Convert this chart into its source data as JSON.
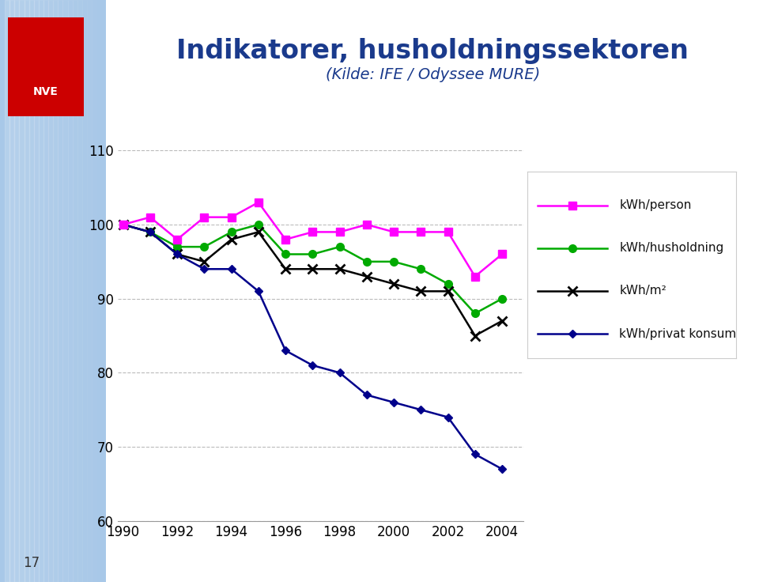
{
  "title": "Indikatorer, husholdningssektoren",
  "subtitle": "(Kilde: IFE / Odyssee MURE)",
  "title_color": "#1a3a8c",
  "subtitle_color": "#1a3a8c",
  "years": [
    1990,
    1991,
    1992,
    1993,
    1994,
    1995,
    1996,
    1997,
    1998,
    1999,
    2000,
    2001,
    2002,
    2003,
    2004
  ],
  "kwh_person": [
    100,
    101,
    98,
    101,
    101,
    103,
    98,
    99,
    99,
    100,
    99,
    99,
    99,
    93,
    96
  ],
  "kwh_husholdning": [
    100,
    99,
    97,
    97,
    99,
    100,
    96,
    96,
    97,
    95,
    95,
    94,
    92,
    88,
    90
  ],
  "kwh_m2": [
    100,
    99,
    96,
    95,
    98,
    99,
    94,
    94,
    94,
    93,
    92,
    91,
    91,
    85,
    87
  ],
  "kwh_privat": [
    100,
    99,
    96,
    94,
    94,
    91,
    83,
    81,
    80,
    77,
    76,
    75,
    74,
    69,
    67
  ],
  "person_color": "#ff00ff",
  "husholdning_color": "#00aa00",
  "m2_color": "#000000",
  "privat_color": "#00008b",
  "ylim": [
    60,
    115
  ],
  "yticks": [
    60,
    70,
    80,
    90,
    100,
    110
  ],
  "xticks": [
    1990,
    1992,
    1994,
    1996,
    1998,
    2000,
    2002,
    2004
  ],
  "footer_text": "17",
  "background_color": "#ffffff",
  "legend_labels": [
    "kWh/person",
    "kWh/husholdning",
    "kWh/m²",
    "kWh/privat konsum"
  ]
}
